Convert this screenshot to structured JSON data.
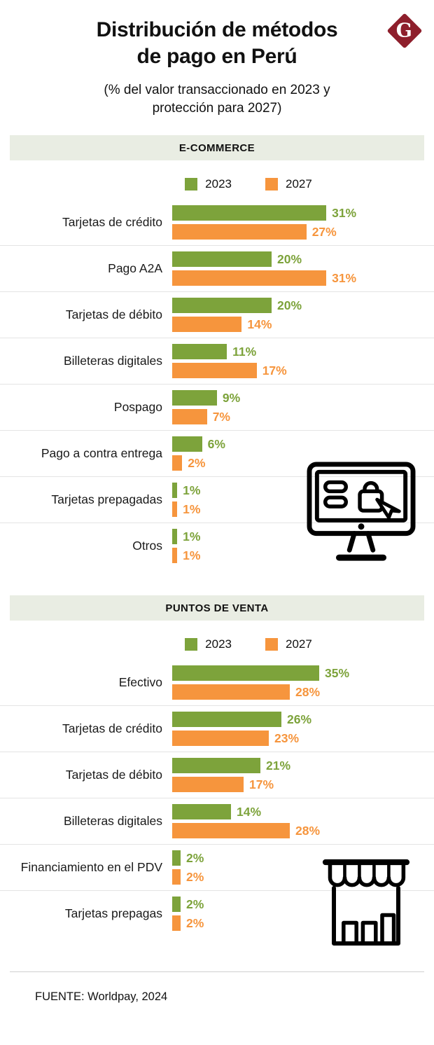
{
  "header": {
    "title": "Distribución de métodos\nde pago en Perú",
    "subtitle": "(% del valor transaccionado en 2023 y\nprotección para 2027)",
    "logo_letter": "G"
  },
  "colors": {
    "green_2023": "#7DA33B",
    "orange_2027": "#F6953D",
    "section_header_bg": "#E9EDE3",
    "logo_red": "#8E1F2C"
  },
  "chart_data": [
    {
      "type": "bar",
      "orientation": "horizontal",
      "title": "E-COMMERCE",
      "unit": "%",
      "legend_position": "top",
      "categories": [
        "Tarjetas de crédito",
        "Pago A2A",
        "Tarjetas de débito",
        "Billeteras digitales",
        "Pospago",
        "Pago a contra entrega",
        "Tarjetas prepagadas",
        "Otros"
      ],
      "series": [
        {
          "name": "2023",
          "color": "#7DA33B",
          "values": [
            31,
            20,
            20,
            11,
            9,
            6,
            1,
            1
          ]
        },
        {
          "name": "2027",
          "color": "#F6953D",
          "values": [
            27,
            31,
            14,
            17,
            7,
            2,
            1,
            1
          ]
        }
      ],
      "icon": "desktop-shopping-icon"
    },
    {
      "type": "bar",
      "orientation": "horizontal",
      "title": "PUNTOS DE VENTA",
      "unit": "%",
      "legend_position": "top",
      "categories": [
        "Efectivo",
        "Tarjetas de crédito",
        "Tarjetas de débito",
        "Billeteras digitales",
        "Financiamiento en el PDV",
        "Tarjetas prepagas"
      ],
      "series": [
        {
          "name": "2023",
          "color": "#7DA33B",
          "values": [
            35,
            26,
            21,
            14,
            2,
            2
          ]
        },
        {
          "name": "2027",
          "color": "#F6953D",
          "values": [
            28,
            23,
            17,
            28,
            2,
            2
          ]
        }
      ],
      "icon": "storefront-icon"
    }
  ],
  "footer": {
    "source": "FUENTE: Worldpay, 2024"
  }
}
